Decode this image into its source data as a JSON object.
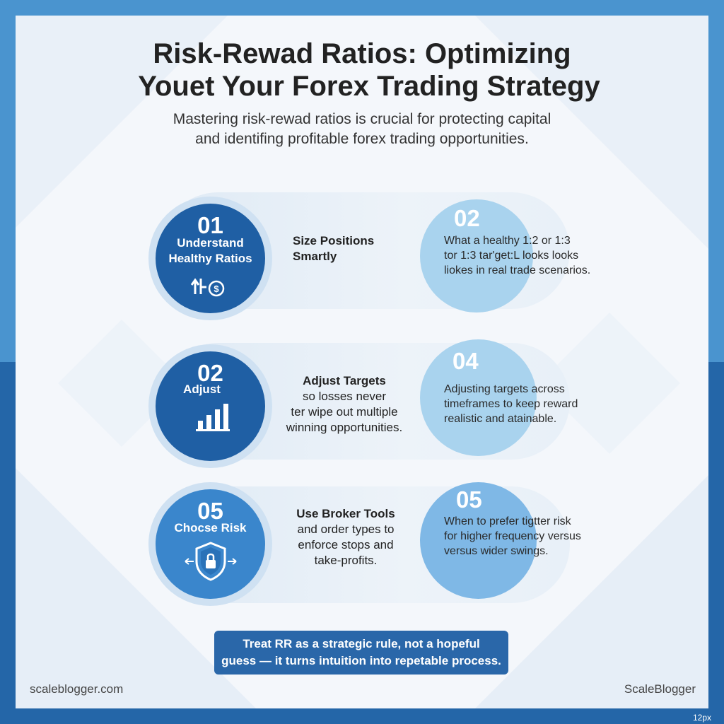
{
  "title": {
    "line1": "Risk-Rewad Ratios: Optimizing",
    "line2": "Youet Your Forex Trading Strategy"
  },
  "subtitle": {
    "line1": "Mastering risk-rewad ratios is crucial for protecting capital",
    "line2": "and identifing profitable forex trading opportunities."
  },
  "rows": [
    {
      "circle_number": "01",
      "circle_label_lines": [
        "Understand",
        "Healthy Ratios"
      ],
      "circle_icon": "trend-dollar-icon",
      "middle_lines": [
        "Size Positions",
        "Smartly"
      ],
      "right_number": "02",
      "right_lines": [
        "What a healthy 1:2 or 1:3",
        "tor 1:3 tar'get:L looks looks",
        "liokes in real trade scenarios."
      ]
    },
    {
      "circle_number": "02",
      "circle_label_lines": [
        "Adjust"
      ],
      "circle_icon": "bar-chart-icon",
      "middle_lines": [
        "Adjust Targets",
        "so losses never",
        "ter wipe out multiple",
        "winning opportunities."
      ],
      "right_number": "04",
      "right_lines": [
        "Adjusting targets across",
        "timeframes to keep reward",
        "realistic and atainable."
      ]
    },
    {
      "circle_number": "05",
      "circle_label_lines": [
        "Chocse Risk"
      ],
      "circle_icon": "shield-lock-icon",
      "middle_lines": [
        "Use Broker Tools",
        "and order types to",
        "enforce stops and",
        "take-profits."
      ],
      "right_number": "05",
      "right_lines": [
        "When to prefer tigtter risk",
        "for higher frequency versus",
        "versus wider swings."
      ]
    }
  ],
  "banner": {
    "line1": "Treat RR as a strategic rule, not a hopeful",
    "line2": "guess — it turns intuition into repetable process."
  },
  "footer": {
    "left": "scaleblogger.com",
    "right": "ScaleBlogger",
    "corner": "12px"
  },
  "colors": {
    "dark_blue": "#1f5fa4",
    "mid_blue": "#3a86cc",
    "light_blue": "#a9d3ee",
    "banner": "#2a67a9"
  }
}
